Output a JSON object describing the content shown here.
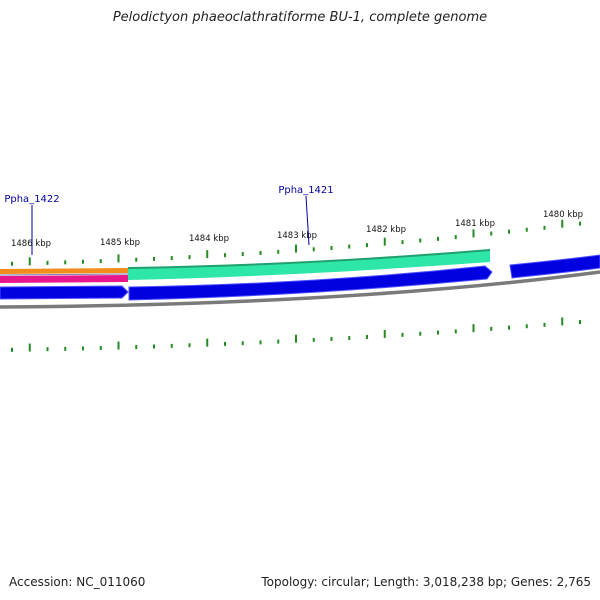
{
  "title": "Pelodictyon phaeoclathratiforme BU-1, complete genome",
  "footer": {
    "accession": "Accession: NC_011060",
    "topology": "Topology: circular; Length: 3,018,238 bp; Genes: 2,765"
  },
  "tick_labels": [
    "1486 kbp",
    "1485 kbp",
    "1484 kbp",
    "1483 kbp",
    "1482 kbp",
    "1481 kbp",
    "1480 kbp"
  ],
  "gene_labels": [
    "Ppha_1422",
    "Ppha_1421"
  ],
  "colors": {
    "orange_feature": "#f28c1c",
    "pink_feature": "#e8168c",
    "green_feature": "#2ee6a8",
    "green_feature_edge": "#1fa06e",
    "blue_cds": "#0000e0",
    "backbone": "#7a7a7a",
    "tick": "#228b22",
    "gene_label": "#000099"
  },
  "icons": [
    "gene-arrow-icon"
  ]
}
